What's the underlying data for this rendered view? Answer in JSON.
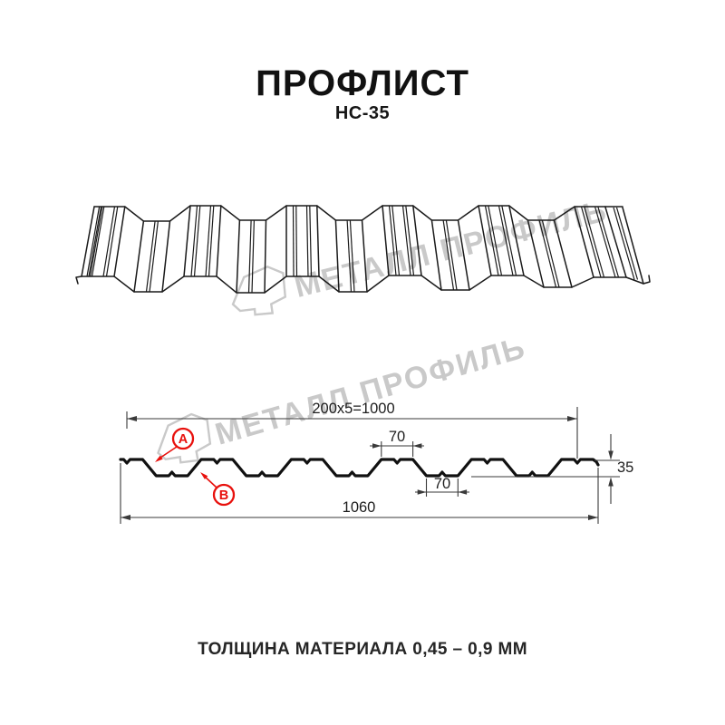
{
  "header": {
    "title": "ПРОФЛИСТ",
    "subtitle": "НС-35"
  },
  "watermark": {
    "brand": "МЕТАЛЛ ПРОФИЛЬ"
  },
  "diagram": {
    "dimensions": {
      "useful_width": "200x5=1000",
      "top_flange_width": "70",
      "bottom_flange_width": "70",
      "profile_height": "35",
      "total_width": "1060"
    },
    "markers": {
      "a": "A",
      "b": "B"
    }
  },
  "footer": {
    "thickness_note": "ТОЛЩИНА МАТЕРИАЛА 0,45 – 0,9 ММ"
  },
  "colors": {
    "accent_red": "#e8100c",
    "watermark_gray": "#c9c9c9",
    "line_black": "#1a1a1a"
  }
}
